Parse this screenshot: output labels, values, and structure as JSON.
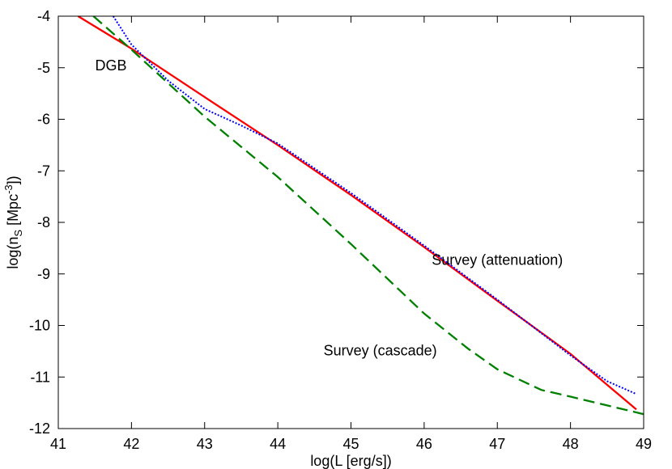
{
  "chart_data": {
    "type": "line",
    "title": "",
    "xlabel": "log(L [erg/s])",
    "ylabel": "log(n_S [Mpc^-3])",
    "ylabel_parts": {
      "pre": "log(n",
      "sub": "S",
      "mid": " [Mpc",
      "sup": "-3",
      "post": "])"
    },
    "xlim": [
      41,
      49
    ],
    "ylim": [
      -12,
      -4
    ],
    "xticks": [
      "41",
      "42",
      "43",
      "44",
      "45",
      "46",
      "47",
      "48",
      "49"
    ],
    "yticks": [
      "-4",
      "-5",
      "-6",
      "-7",
      "-8",
      "-9",
      "-10",
      "-11",
      "-12"
    ],
    "grid": false,
    "series": [
      {
        "id": "dgb",
        "color": "#ff0000",
        "dash": "solid",
        "x": [
          41.27,
          42.0,
          43.0,
          44.0,
          45.0,
          46.0,
          47.0,
          48.0,
          48.9
        ],
        "y": [
          -4.0,
          -4.63,
          -5.57,
          -6.5,
          -7.47,
          -8.48,
          -9.52,
          -10.55,
          -11.63
        ]
      },
      {
        "id": "survey-cascade",
        "color": "#008000",
        "dash": "long-dash",
        "x": [
          41.48,
          42.0,
          43.0,
          44.0,
          45.0,
          46.0,
          46.6,
          47.0,
          47.6,
          48.0,
          49.0
        ],
        "y": [
          -4.0,
          -4.65,
          -5.95,
          -7.12,
          -8.42,
          -9.77,
          -10.45,
          -10.85,
          -11.25,
          -11.38,
          -11.72
        ]
      },
      {
        "id": "survey-attenuation",
        "color": "#0000ff",
        "dash": "dotted",
        "x": [
          41.75,
          42.0,
          42.5,
          43.0,
          43.5,
          44.0,
          45.0,
          46.0,
          47.0,
          48.0,
          48.5,
          48.9
        ],
        "y": [
          -4.0,
          -4.55,
          -5.25,
          -5.8,
          -6.12,
          -6.47,
          -7.43,
          -8.45,
          -9.5,
          -10.58,
          -11.08,
          -11.33
        ]
      }
    ],
    "annotations": [
      {
        "id": "dgb",
        "text": "DGB",
        "x": 41.72,
        "y": -5.05
      },
      {
        "id": "survey-attenuation",
        "text": "Survey (attenuation)",
        "x": 47.0,
        "y": -8.82
      },
      {
        "id": "survey-cascade",
        "text": "Survey (cascade)",
        "x": 45.4,
        "y": -10.58
      }
    ]
  }
}
